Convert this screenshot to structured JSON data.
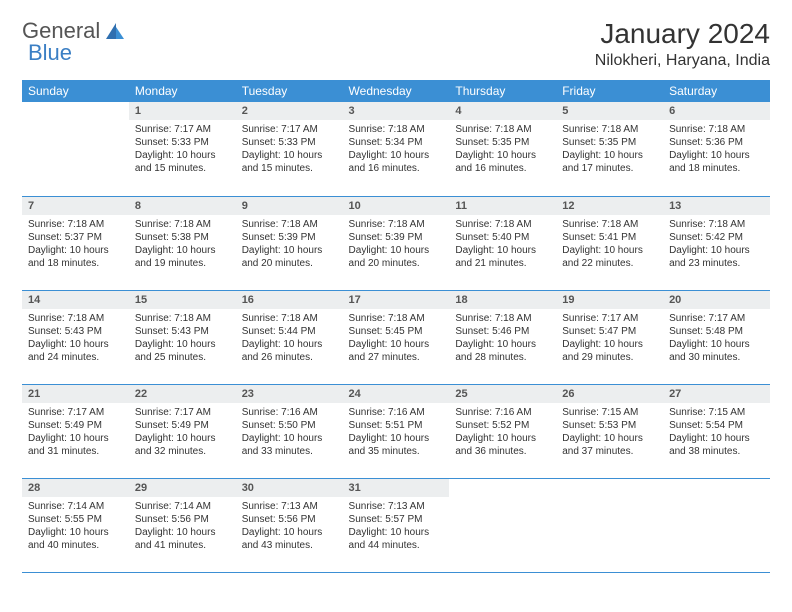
{
  "brand": {
    "part1": "General",
    "part2": "Blue"
  },
  "title": "January 2024",
  "location": "Nilokheri, Haryana, India",
  "colors": {
    "header_bg": "#3b8fd4",
    "header_text": "#ffffff",
    "daynum_bg": "#eceeef",
    "row_border": "#3b8fd4",
    "text": "#333333",
    "logo_blue": "#3b7fc4"
  },
  "day_headers": [
    "Sunday",
    "Monday",
    "Tuesday",
    "Wednesday",
    "Thursday",
    "Friday",
    "Saturday"
  ],
  "weeks": [
    [
      {
        "empty": true
      },
      {
        "num": "1",
        "sunrise": "Sunrise: 7:17 AM",
        "sunset": "Sunset: 5:33 PM",
        "day1": "Daylight: 10 hours",
        "day2": "and 15 minutes."
      },
      {
        "num": "2",
        "sunrise": "Sunrise: 7:17 AM",
        "sunset": "Sunset: 5:33 PM",
        "day1": "Daylight: 10 hours",
        "day2": "and 15 minutes."
      },
      {
        "num": "3",
        "sunrise": "Sunrise: 7:18 AM",
        "sunset": "Sunset: 5:34 PM",
        "day1": "Daylight: 10 hours",
        "day2": "and 16 minutes."
      },
      {
        "num": "4",
        "sunrise": "Sunrise: 7:18 AM",
        "sunset": "Sunset: 5:35 PM",
        "day1": "Daylight: 10 hours",
        "day2": "and 16 minutes."
      },
      {
        "num": "5",
        "sunrise": "Sunrise: 7:18 AM",
        "sunset": "Sunset: 5:35 PM",
        "day1": "Daylight: 10 hours",
        "day2": "and 17 minutes."
      },
      {
        "num": "6",
        "sunrise": "Sunrise: 7:18 AM",
        "sunset": "Sunset: 5:36 PM",
        "day1": "Daylight: 10 hours",
        "day2": "and 18 minutes."
      }
    ],
    [
      {
        "num": "7",
        "sunrise": "Sunrise: 7:18 AM",
        "sunset": "Sunset: 5:37 PM",
        "day1": "Daylight: 10 hours",
        "day2": "and 18 minutes."
      },
      {
        "num": "8",
        "sunrise": "Sunrise: 7:18 AM",
        "sunset": "Sunset: 5:38 PM",
        "day1": "Daylight: 10 hours",
        "day2": "and 19 minutes."
      },
      {
        "num": "9",
        "sunrise": "Sunrise: 7:18 AM",
        "sunset": "Sunset: 5:39 PM",
        "day1": "Daylight: 10 hours",
        "day2": "and 20 minutes."
      },
      {
        "num": "10",
        "sunrise": "Sunrise: 7:18 AM",
        "sunset": "Sunset: 5:39 PM",
        "day1": "Daylight: 10 hours",
        "day2": "and 20 minutes."
      },
      {
        "num": "11",
        "sunrise": "Sunrise: 7:18 AM",
        "sunset": "Sunset: 5:40 PM",
        "day1": "Daylight: 10 hours",
        "day2": "and 21 minutes."
      },
      {
        "num": "12",
        "sunrise": "Sunrise: 7:18 AM",
        "sunset": "Sunset: 5:41 PM",
        "day1": "Daylight: 10 hours",
        "day2": "and 22 minutes."
      },
      {
        "num": "13",
        "sunrise": "Sunrise: 7:18 AM",
        "sunset": "Sunset: 5:42 PM",
        "day1": "Daylight: 10 hours",
        "day2": "and 23 minutes."
      }
    ],
    [
      {
        "num": "14",
        "sunrise": "Sunrise: 7:18 AM",
        "sunset": "Sunset: 5:43 PM",
        "day1": "Daylight: 10 hours",
        "day2": "and 24 minutes."
      },
      {
        "num": "15",
        "sunrise": "Sunrise: 7:18 AM",
        "sunset": "Sunset: 5:43 PM",
        "day1": "Daylight: 10 hours",
        "day2": "and 25 minutes."
      },
      {
        "num": "16",
        "sunrise": "Sunrise: 7:18 AM",
        "sunset": "Sunset: 5:44 PM",
        "day1": "Daylight: 10 hours",
        "day2": "and 26 minutes."
      },
      {
        "num": "17",
        "sunrise": "Sunrise: 7:18 AM",
        "sunset": "Sunset: 5:45 PM",
        "day1": "Daylight: 10 hours",
        "day2": "and 27 minutes."
      },
      {
        "num": "18",
        "sunrise": "Sunrise: 7:18 AM",
        "sunset": "Sunset: 5:46 PM",
        "day1": "Daylight: 10 hours",
        "day2": "and 28 minutes."
      },
      {
        "num": "19",
        "sunrise": "Sunrise: 7:17 AM",
        "sunset": "Sunset: 5:47 PM",
        "day1": "Daylight: 10 hours",
        "day2": "and 29 minutes."
      },
      {
        "num": "20",
        "sunrise": "Sunrise: 7:17 AM",
        "sunset": "Sunset: 5:48 PM",
        "day1": "Daylight: 10 hours",
        "day2": "and 30 minutes."
      }
    ],
    [
      {
        "num": "21",
        "sunrise": "Sunrise: 7:17 AM",
        "sunset": "Sunset: 5:49 PM",
        "day1": "Daylight: 10 hours",
        "day2": "and 31 minutes."
      },
      {
        "num": "22",
        "sunrise": "Sunrise: 7:17 AM",
        "sunset": "Sunset: 5:49 PM",
        "day1": "Daylight: 10 hours",
        "day2": "and 32 minutes."
      },
      {
        "num": "23",
        "sunrise": "Sunrise: 7:16 AM",
        "sunset": "Sunset: 5:50 PM",
        "day1": "Daylight: 10 hours",
        "day2": "and 33 minutes."
      },
      {
        "num": "24",
        "sunrise": "Sunrise: 7:16 AM",
        "sunset": "Sunset: 5:51 PM",
        "day1": "Daylight: 10 hours",
        "day2": "and 35 minutes."
      },
      {
        "num": "25",
        "sunrise": "Sunrise: 7:16 AM",
        "sunset": "Sunset: 5:52 PM",
        "day1": "Daylight: 10 hours",
        "day2": "and 36 minutes."
      },
      {
        "num": "26",
        "sunrise": "Sunrise: 7:15 AM",
        "sunset": "Sunset: 5:53 PM",
        "day1": "Daylight: 10 hours",
        "day2": "and 37 minutes."
      },
      {
        "num": "27",
        "sunrise": "Sunrise: 7:15 AM",
        "sunset": "Sunset: 5:54 PM",
        "day1": "Daylight: 10 hours",
        "day2": "and 38 minutes."
      }
    ],
    [
      {
        "num": "28",
        "sunrise": "Sunrise: 7:14 AM",
        "sunset": "Sunset: 5:55 PM",
        "day1": "Daylight: 10 hours",
        "day2": "and 40 minutes."
      },
      {
        "num": "29",
        "sunrise": "Sunrise: 7:14 AM",
        "sunset": "Sunset: 5:56 PM",
        "day1": "Daylight: 10 hours",
        "day2": "and 41 minutes."
      },
      {
        "num": "30",
        "sunrise": "Sunrise: 7:13 AM",
        "sunset": "Sunset: 5:56 PM",
        "day1": "Daylight: 10 hours",
        "day2": "and 43 minutes."
      },
      {
        "num": "31",
        "sunrise": "Sunrise: 7:13 AM",
        "sunset": "Sunset: 5:57 PM",
        "day1": "Daylight: 10 hours",
        "day2": "and 44 minutes."
      },
      {
        "empty": true
      },
      {
        "empty": true
      },
      {
        "empty": true
      }
    ]
  ]
}
